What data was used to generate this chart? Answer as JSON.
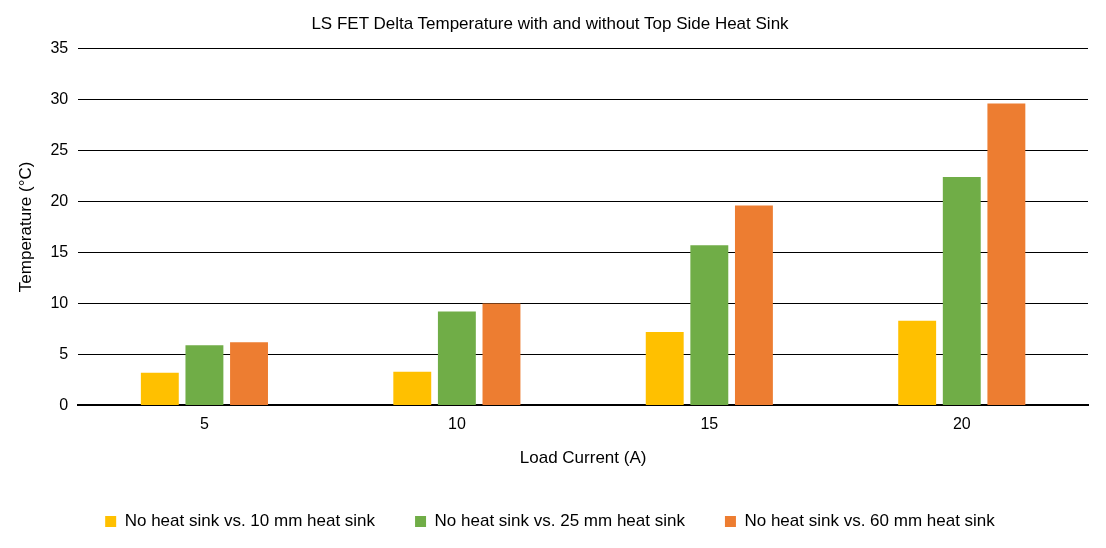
{
  "chart_data": {
    "type": "bar",
    "title": "LS FET Delta Temperature with and without Top Side Heat Sink",
    "xlabel": "Load Current (A)",
    "ylabel": "Temperature (°C)",
    "categories": [
      "5",
      "10",
      "15",
      "20"
    ],
    "series": [
      {
        "name": "No heat sink vs. 10 mm heat sink",
        "color": "#ffc000",
        "values": [
          3.2,
          3.3,
          7.2,
          8.3
        ]
      },
      {
        "name": "No heat sink vs. 25 mm heat sink",
        "color": "#70ad47",
        "values": [
          5.9,
          9.2,
          15.7,
          22.4
        ]
      },
      {
        "name": "No heat sink vs. 60 mm heat sink",
        "color": "#ed7d31",
        "values": [
          6.2,
          10.0,
          19.6,
          29.6
        ]
      }
    ],
    "ylim": [
      0,
      35
    ],
    "yticks": [
      0,
      5,
      10,
      15,
      20,
      25,
      30,
      35
    ],
    "grid": "y",
    "legend": "bottom"
  }
}
